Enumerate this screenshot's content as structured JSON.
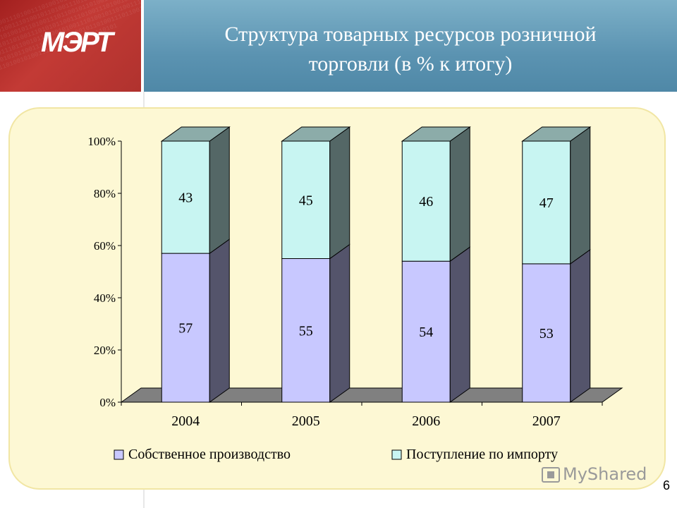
{
  "header": {
    "title_line1": "Структура товарных ресурсов розничной",
    "title_line2": "торговли  (в % к итогу)"
  },
  "logo": {
    "text": "МЭРТ"
  },
  "chart_data": {
    "type": "bar",
    "stacked": true,
    "three_d": true,
    "categories": [
      "2004",
      "2005",
      "2006",
      "2007"
    ],
    "series": [
      {
        "name": "Собственное производство",
        "values": [
          57,
          55,
          54,
          53
        ],
        "color": "#c8c8ff"
      },
      {
        "name": "Поступление по импорту",
        "values": [
          43,
          45,
          46,
          47
        ],
        "color": "#c8f5f2"
      }
    ],
    "y_ticks": [
      "0%",
      "20%",
      "40%",
      "60%",
      "80%",
      "100%"
    ],
    "ylim": [
      0,
      100
    ],
    "legend_position": "bottom",
    "grid": false
  },
  "watermark": "MyShared",
  "page_number": "6",
  "colors": {
    "header_bg": "#5b93b1",
    "logo_bg": "#b0322e",
    "panel_bg": "#fdf8d4",
    "panel_border": "#f1e6a4"
  }
}
